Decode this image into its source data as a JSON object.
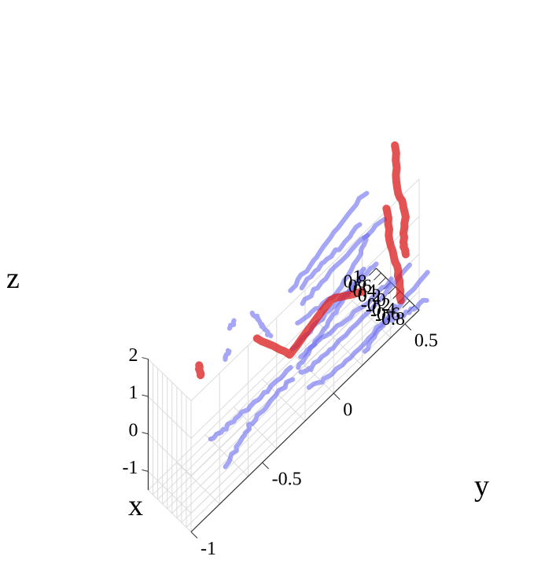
{
  "chart_data": {
    "type": "3d-line",
    "xlabel": "x",
    "ylabel": "y",
    "zlabel": "z",
    "x_ticks": [
      "1",
      "0.8",
      "0.6",
      "0.4",
      "0.2",
      "0",
      "-0.2",
      "-0.4",
      "-0.6",
      "-0.8"
    ],
    "y_ticks": [
      "-1",
      "-0.5",
      "0",
      "0.5"
    ],
    "z_ticks": [
      "2",
      "1",
      "0",
      "-1"
    ],
    "xlim": [
      1,
      -0.8
    ],
    "ylim": [
      -1,
      0.6
    ],
    "zlim": [
      -1.5,
      2
    ],
    "colors": {
      "blue_tubes": "#6f6ff0",
      "red_tubes": "#dd2222",
      "grid": "#dcdcdc"
    },
    "red_paths": [
      [
        [
          0.74,
          0.69,
          1.6
        ],
        [
          0.66,
          0.69,
          0.5
        ],
        [
          0.62,
          0.74,
          -0.3
        ],
        [
          0.58,
          0.72,
          -1.0
        ],
        [
          0.6,
          0.74,
          -1.4
        ]
      ],
      [
        [
          -0.2,
          -0.44,
          1.2
        ],
        [
          -0.18,
          -0.2,
          -0.1
        ],
        [
          -0.1,
          0.1,
          0.2
        ],
        [
          -0.1,
          0.32,
          -0.4
        ]
      ],
      [
        [
          -0.1,
          0.49,
          1.2
        ],
        [
          -0.21,
          0.49,
          0.4
        ],
        [
          -0.33,
          0.53,
          -0.5
        ],
        [
          -0.45,
          0.53,
          -1.2
        ]
      ],
      [
        [
          0.14,
          -0.79,
          1.6
        ],
        [
          0.12,
          -0.78,
          1.3
        ]
      ]
    ],
    "blue_paths": [
      [
        [
          0.61,
          0.46,
          1.3
        ],
        [
          0.38,
          0.2,
          1.3
        ],
        [
          0.2,
          0.03,
          1.3
        ],
        [
          0.06,
          -0.16,
          1.3
        ]
      ],
      [
        [
          0.83,
          0.64,
          -0.2
        ],
        [
          0.55,
          0.39,
          0.2
        ],
        [
          0.32,
          0.13,
          0.4
        ],
        [
          0.09,
          -0.07,
          0.6
        ]
      ],
      [
        [
          0.86,
          0.58,
          -1.2
        ],
        [
          0.6,
          0.4,
          -0.9
        ],
        [
          0.35,
          0.2,
          -0.6
        ],
        [
          0.08,
          -0.02,
          -0.3
        ],
        [
          -0.03,
          -0.16,
          -0.2
        ]
      ],
      [
        [
          0.78,
          0.5,
          -0.1
        ],
        [
          0.6,
          0.42,
          -0.2
        ],
        [
          0.43,
          0.27,
          -0.4
        ],
        [
          0.3,
          0.09,
          -0.2
        ],
        [
          0.18,
          -0.09,
          0.1
        ]
      ],
      [
        [
          0.54,
          0.4,
          0.7
        ],
        [
          0.35,
          0.23,
          0.8
        ],
        [
          0.28,
          0.1,
          0.9
        ],
        [
          0.12,
          -0.07,
          1.0
        ]
      ],
      [
        [
          0.43,
          0.62,
          -1.5
        ],
        [
          0.27,
          0.45,
          -1.3
        ],
        [
          0.12,
          0.24,
          -1.0
        ],
        [
          -0.02,
          0.05,
          -0.7
        ],
        [
          -0.13,
          -0.12,
          -0.5
        ]
      ],
      [
        [
          0.42,
          0.42,
          -0.5
        ],
        [
          0.28,
          0.3,
          -0.5
        ],
        [
          0.1,
          0.14,
          -0.5
        ],
        [
          -0.05,
          -0.02,
          -0.6
        ],
        [
          -0.15,
          -0.14,
          -0.7
        ]
      ],
      [
        [
          0.2,
          0.7,
          -1.3
        ],
        [
          -0.02,
          0.38,
          -1.2
        ],
        [
          -0.24,
          0.1,
          -1.0
        ],
        [
          -0.35,
          -0.08,
          -0.8
        ],
        [
          -0.38,
          -0.16,
          -0.6
        ]
      ],
      [
        [
          0.08,
          0.8,
          -1.8
        ],
        [
          -0.22,
          0.47,
          -1.6
        ],
        [
          -0.42,
          0.25,
          -1.5
        ],
        [
          -0.53,
          0.04,
          -1.3
        ],
        [
          -0.48,
          -0.12,
          -1.1
        ]
      ],
      [
        [
          0.16,
          -0.4,
          1.5
        ],
        [
          0.18,
          -0.37,
          1.2
        ],
        [
          0.21,
          -0.32,
          0.8
        ],
        [
          0.22,
          -0.27,
          0.4
        ]
      ],
      [
        [
          -0.41,
          0.5,
          -1.3
        ],
        [
          -0.5,
          0.35,
          -1.4
        ],
        [
          -0.55,
          0.26,
          -1.5
        ]
      ],
      [
        [
          -0.2,
          -0.2,
          -0.4
        ],
        [
          -0.35,
          -0.38,
          -0.3
        ],
        [
          -0.45,
          -0.55,
          -0.1
        ],
        [
          -0.56,
          -0.72,
          0.1
        ],
        [
          -0.66,
          -0.84,
          0.3
        ]
      ],
      [
        [
          -0.25,
          -0.2,
          -0.7
        ],
        [
          -0.3,
          -0.38,
          -0.7
        ],
        [
          -0.38,
          -0.52,
          -0.7
        ],
        [
          -0.58,
          -0.62,
          -0.7
        ],
        [
          -0.68,
          -0.74,
          -0.8
        ]
      ],
      [
        [
          -0.46,
          0.7,
          -1.8
        ],
        [
          -0.54,
          0.57,
          -1.6
        ],
        [
          -0.62,
          0.44,
          -1.3
        ]
      ],
      [
        [
          0.35,
          -0.5,
          1.6
        ],
        [
          0.28,
          -0.55,
          1.6
        ]
      ],
      [
        [
          -0.08,
          -0.62,
          1.5
        ],
        [
          -0.14,
          -0.65,
          1.4
        ]
      ]
    ]
  }
}
